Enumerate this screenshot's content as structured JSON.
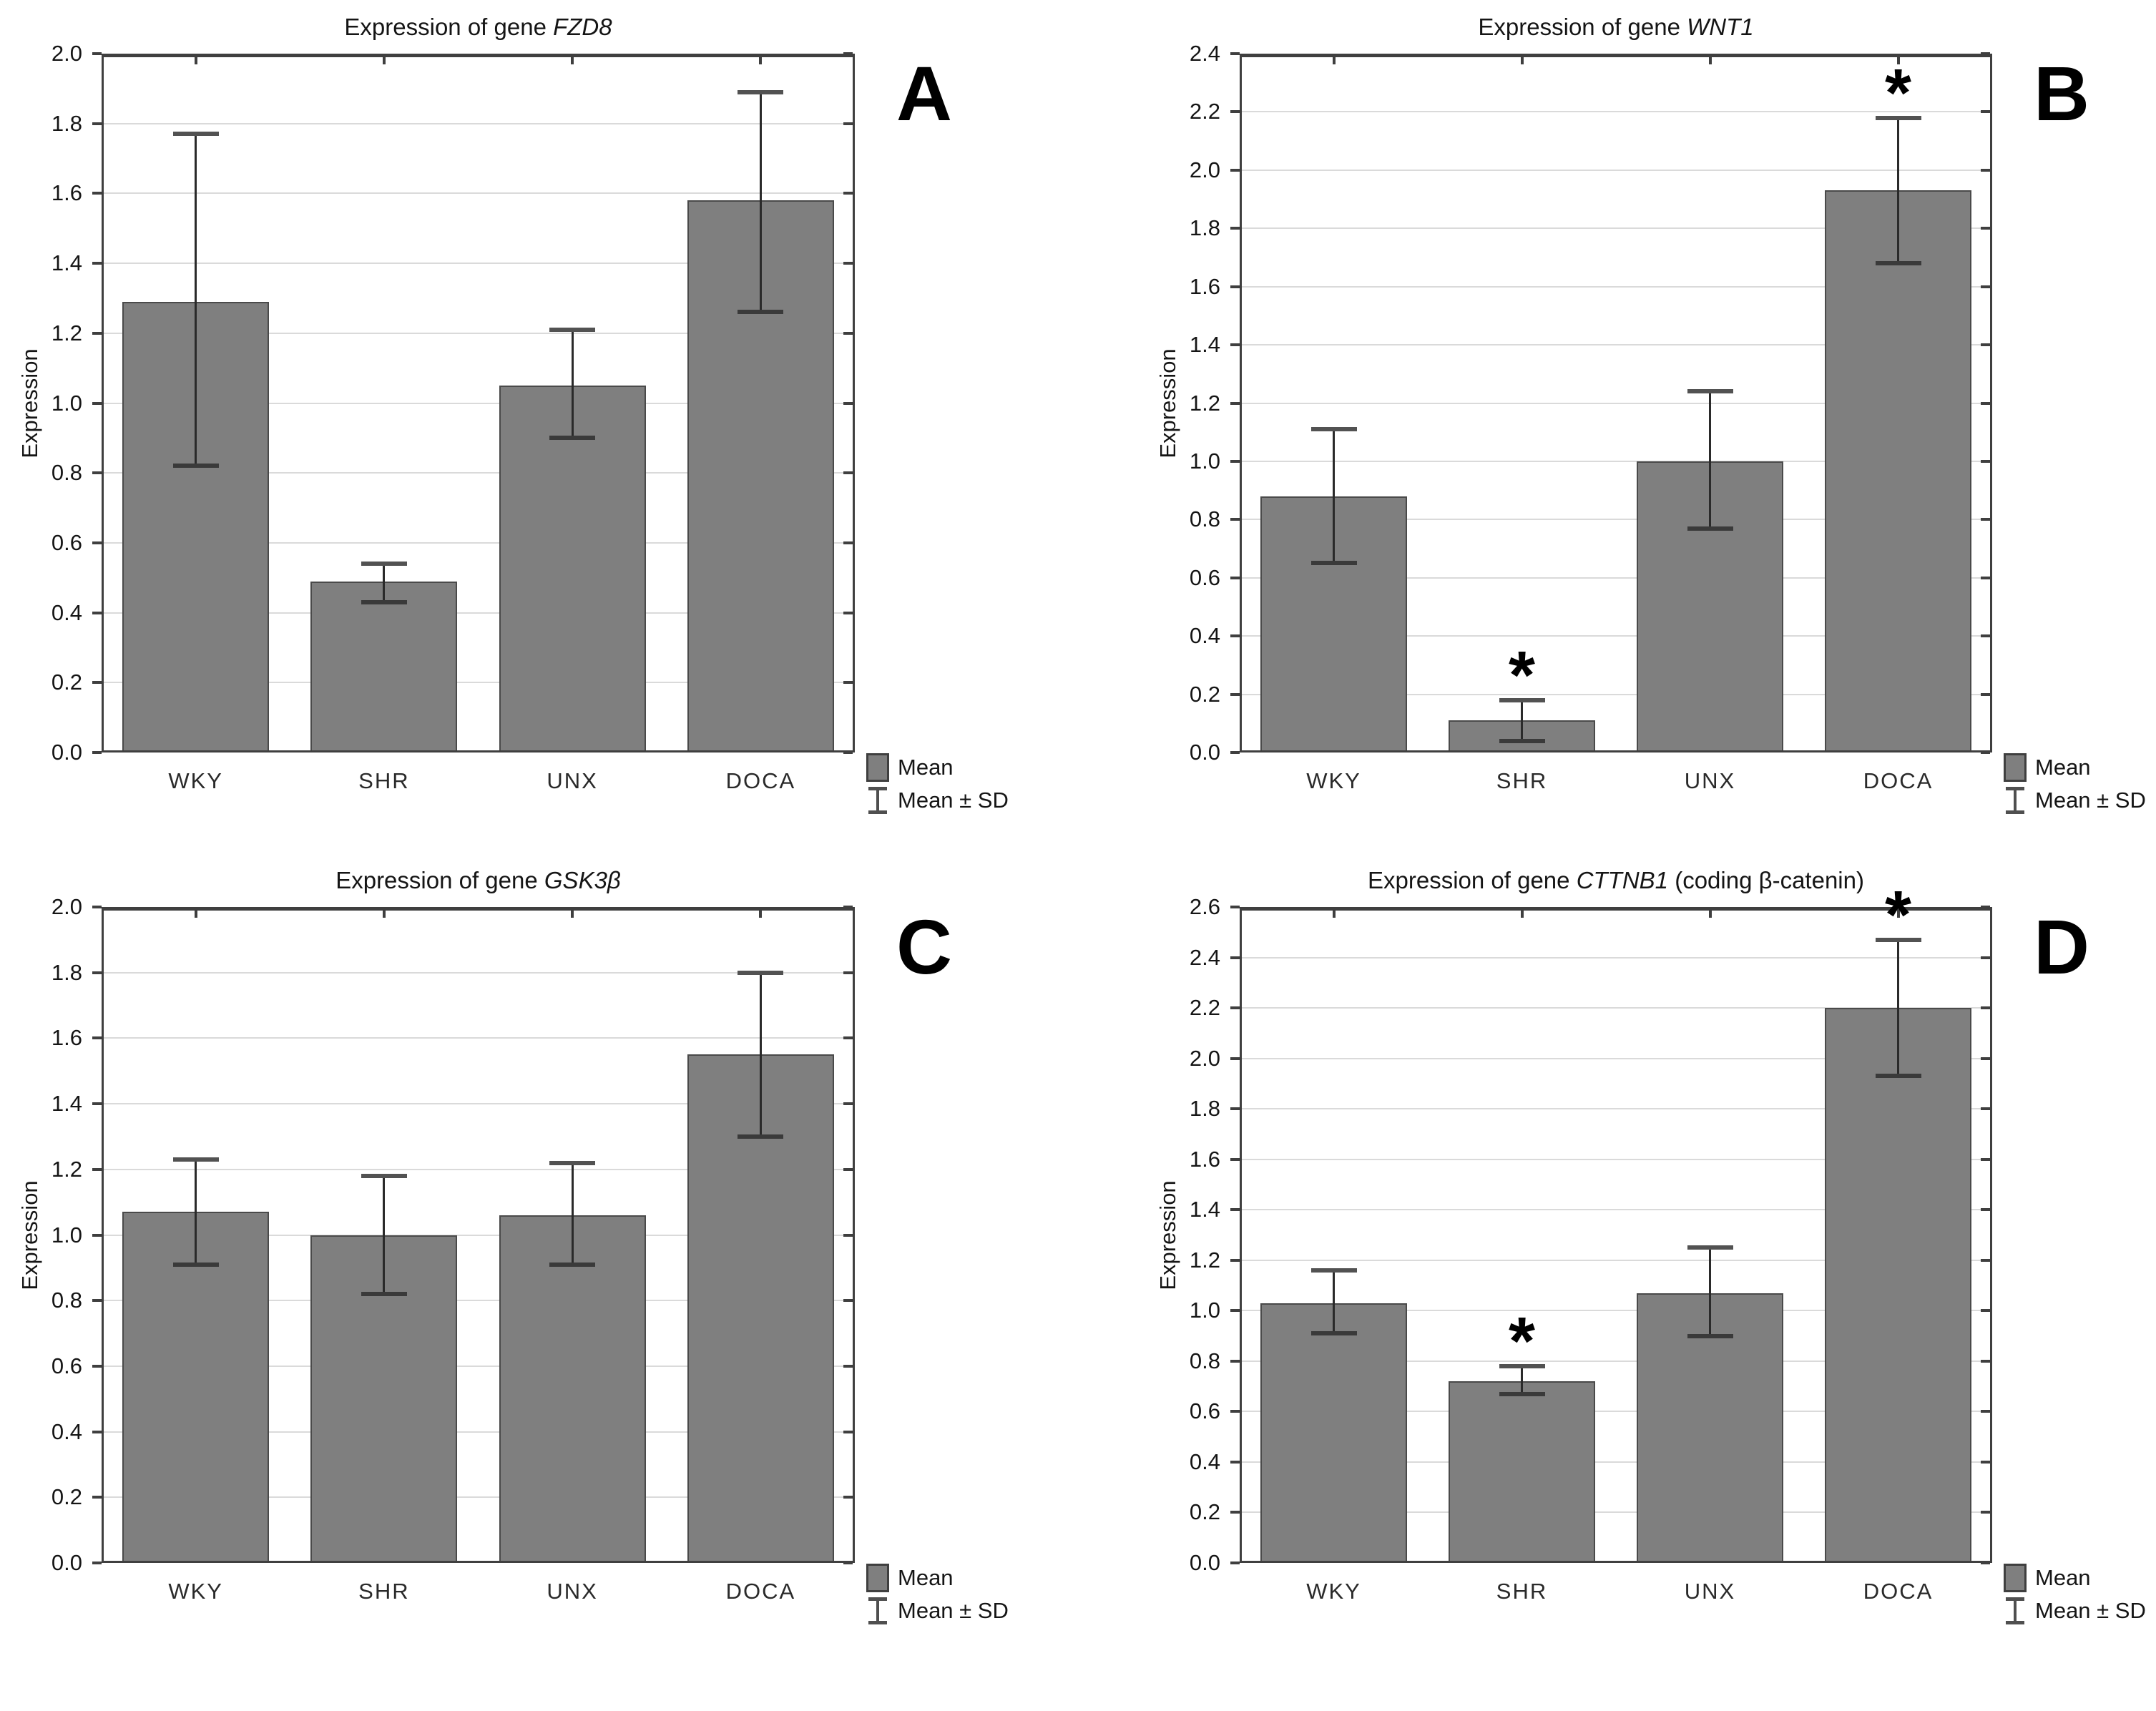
{
  "figure": {
    "background": "#ffffff"
  },
  "legend": {
    "mean_label": "Mean",
    "sd_label": "Mean ± SD"
  },
  "colors": {
    "bar_fill": "#7f7f7f",
    "bar_border": "#4a4a4a",
    "grid": "#dadada",
    "frame": "#3f3f3f",
    "error_line": "#2a2a2a",
    "error_cap": "#525252",
    "text": "#151515"
  },
  "chart_data": [
    {
      "id": "A",
      "type": "bar",
      "panel_label": "A",
      "title": "Expression of gene FZD8",
      "title_prefix": "Expression of gene ",
      "gene": "FZD8",
      "title_suffix": "",
      "ylabel": "Expression",
      "ylim": [
        0.0,
        2.0
      ],
      "ytick_step": 0.2,
      "grid": true,
      "legend_position": "bottom-right",
      "categories": [
        "WKY",
        "SHR",
        "UNX",
        "DOCA"
      ],
      "values": [
        1.29,
        0.49,
        1.05,
        1.58
      ],
      "sd_low": [
        0.82,
        0.43,
        0.9,
        1.26
      ],
      "sd_high": [
        1.77,
        0.54,
        1.21,
        1.89
      ],
      "significant": [
        false,
        false,
        false,
        false
      ]
    },
    {
      "id": "B",
      "type": "bar",
      "panel_label": "B",
      "title": "Expression of gene WNT1",
      "title_prefix": "Expression of gene ",
      "gene": "WNT1",
      "title_suffix": "",
      "ylabel": "Expression",
      "ylim": [
        0.0,
        2.4
      ],
      "ytick_step": 0.2,
      "grid": true,
      "legend_position": "bottom-right",
      "categories": [
        "WKY",
        "SHR",
        "UNX",
        "DOCA"
      ],
      "values": [
        0.88,
        0.11,
        1.0,
        1.93
      ],
      "sd_low": [
        0.65,
        0.04,
        0.77,
        1.68
      ],
      "sd_high": [
        1.11,
        0.18,
        1.24,
        2.18
      ],
      "significant": [
        false,
        true,
        false,
        true
      ]
    },
    {
      "id": "C",
      "type": "bar",
      "panel_label": "C",
      "title": "Expression of gene GSK3β",
      "title_prefix": "Expression of gene ",
      "gene": "GSK3β",
      "title_suffix": "",
      "ylabel": "Expression",
      "ylim": [
        0.0,
        2.0
      ],
      "ytick_step": 0.2,
      "grid": true,
      "legend_position": "bottom-right",
      "categories": [
        "WKY",
        "SHR",
        "UNX",
        "DOCA"
      ],
      "values": [
        1.07,
        1.0,
        1.06,
        1.55
      ],
      "sd_low": [
        0.91,
        0.82,
        0.91,
        1.3
      ],
      "sd_high": [
        1.23,
        1.18,
        1.22,
        1.8
      ],
      "significant": [
        false,
        false,
        false,
        false
      ]
    },
    {
      "id": "D",
      "type": "bar",
      "panel_label": "D",
      "title": "Expression of gene CTTNB1 (coding β-catenin)",
      "title_prefix": "Expression of gene ",
      "gene": "CTTNB1",
      "title_suffix": " (coding β-catenin)",
      "ylabel": "Expression",
      "ylim": [
        0.0,
        2.6
      ],
      "ytick_step": 0.2,
      "grid": true,
      "legend_position": "bottom-right",
      "categories": [
        "WKY",
        "SHR",
        "UNX",
        "DOCA"
      ],
      "values": [
        1.03,
        0.72,
        1.07,
        2.2
      ],
      "sd_low": [
        0.91,
        0.67,
        0.9,
        1.93
      ],
      "sd_high": [
        1.16,
        0.78,
        1.25,
        2.47
      ],
      "significant": [
        false,
        true,
        false,
        true
      ]
    }
  ]
}
